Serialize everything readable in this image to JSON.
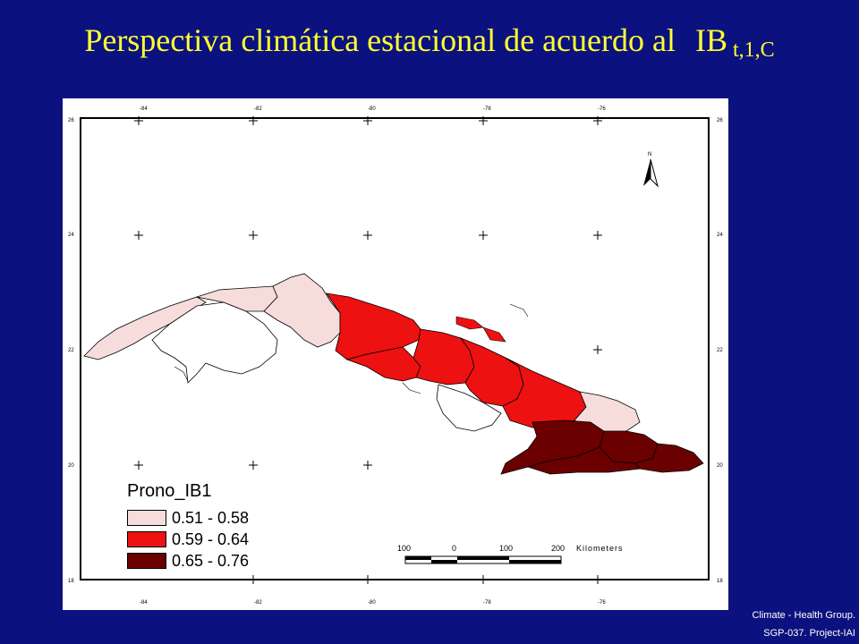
{
  "title": {
    "main": "Perspectiva climática estacional de acuerdo al",
    "index": "IB",
    "subscript": "t,1,C"
  },
  "map": {
    "longitude_ticks": [
      "-84",
      "-82",
      "-80",
      "-78",
      "-76"
    ],
    "latitude_ticks": [
      "26",
      "24",
      "22",
      "20",
      "18"
    ],
    "north_label": "N",
    "scale_bar": {
      "labels": [
        "100",
        "0",
        "100",
        "200"
      ],
      "unit": "Kilometers"
    }
  },
  "legend": {
    "title": "Prono_IB1",
    "items": [
      {
        "label": "0.51 - 0.58",
        "color": "#f7dcdc"
      },
      {
        "label": "0.59 - 0.64",
        "color": "#ee1111"
      },
      {
        "label": "0.65 - 0.76",
        "color": "#6a0000"
      }
    ]
  },
  "credits": {
    "line1": "Climate - Health Group.",
    "line2": "SGP-037. Project-IAI"
  }
}
